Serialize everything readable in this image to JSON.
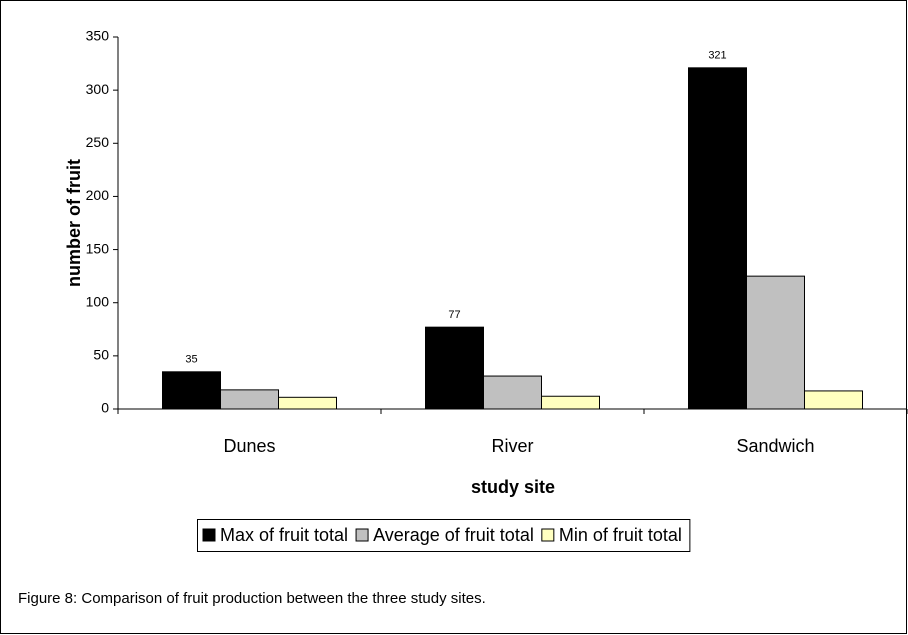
{
  "chart_data": {
    "type": "bar",
    "x_label": "study site",
    "y_label": "number of fruit",
    "caption": "Figure 8: Comparison of fruit production between the three study sites.",
    "categories": [
      "Dunes",
      "River",
      "Sandwich"
    ],
    "series": [
      {
        "name": "Max of fruit total",
        "color": "#000000",
        "values": [
          35,
          77,
          321
        ],
        "labels": true
      },
      {
        "name": "Average of fruit total",
        "color": "#c0c0c0",
        "values": [
          18,
          31,
          125
        ]
      },
      {
        "name": "Min of fruit total",
        "color": "#ffffc0",
        "values": [
          11,
          12,
          17
        ]
      }
    ],
    "ylim": [
      0,
      350
    ],
    "yticks": [
      0,
      50,
      100,
      150,
      200,
      250,
      300,
      350
    ],
    "legend": "bottom"
  }
}
